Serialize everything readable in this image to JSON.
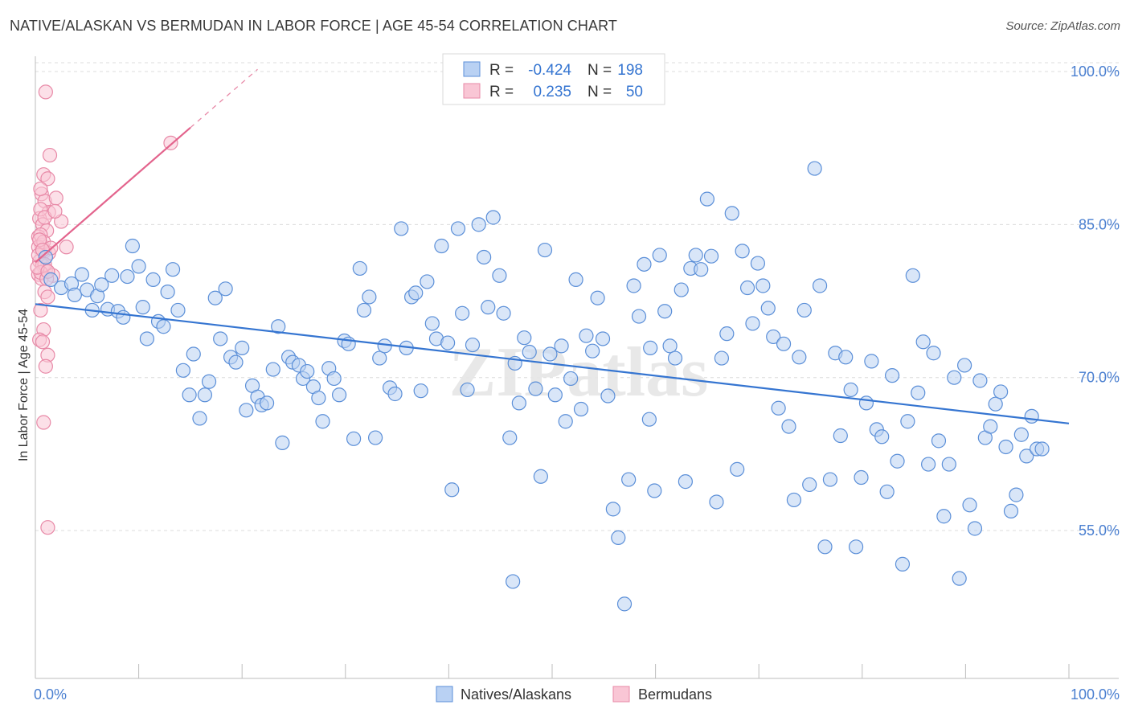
{
  "header": {
    "title": "NATIVE/ALASKAN VS BERMUDAN IN LABOR FORCE | AGE 45-54 CORRELATION CHART",
    "source": "Source: ZipAtlas.com"
  },
  "watermark": "ZIPatlas",
  "colors": {
    "blue_fill": "#b9d1f3",
    "blue_stroke": "#5b8fd8",
    "blue_line": "#3575d1",
    "pink_fill": "#f9c6d5",
    "pink_stroke": "#e889a7",
    "pink_line": "#e3648d",
    "tick_label": "#4a7fd0",
    "grid": "#dcdcdc"
  },
  "legend_top": {
    "rows": [
      {
        "r_label": "R =",
        "r_value": "-0.424",
        "n_label": "N =",
        "n_value": "198",
        "color": "blue"
      },
      {
        "r_label": "R =",
        "r_value": "0.235",
        "n_label": "N =",
        "n_value": "50",
        "color": "pink"
      }
    ]
  },
  "chart_data": {
    "type": "scatter",
    "title": "NATIVE/ALASKAN VS BERMUDAN IN LABOR FORCE | AGE 45-54 CORRELATION CHART",
    "xlabel": "",
    "ylabel": "In Labor Force | Age 45-54",
    "xlim": [
      0,
      100
    ],
    "ylim": [
      40.5,
      101.5
    ],
    "x_tick_labels": [
      "0.0%",
      "100.0%"
    ],
    "y_ticks": [
      100,
      85,
      70,
      55
    ],
    "y_tick_labels": [
      "100.0%",
      "85.0%",
      "70.0%",
      "55.0%"
    ],
    "grid": true,
    "legend": "bottom-center",
    "series": [
      {
        "name": "Natives/Alaskans",
        "color": "blue",
        "trend": {
          "x0": 0,
          "y0": 77.2,
          "x1": 100,
          "y1": 65.5
        },
        "points": [
          [
            1.0,
            81.8
          ],
          [
            1.5,
            79.6
          ],
          [
            2.5,
            78.8
          ],
          [
            3.5,
            79.2
          ],
          [
            3.8,
            78.1
          ],
          [
            4.5,
            80.1
          ],
          [
            5.0,
            78.6
          ],
          [
            5.5,
            76.6
          ],
          [
            6.0,
            78.0
          ],
          [
            6.4,
            79.1
          ],
          [
            7.0,
            76.7
          ],
          [
            7.4,
            80.0
          ],
          [
            8.0,
            76.5
          ],
          [
            8.5,
            75.9
          ],
          [
            8.9,
            79.9
          ],
          [
            9.4,
            82.9
          ],
          [
            10.0,
            80.9
          ],
          [
            10.4,
            76.9
          ],
          [
            10.8,
            73.8
          ],
          [
            11.4,
            79.6
          ],
          [
            11.9,
            75.5
          ],
          [
            12.4,
            75.0
          ],
          [
            12.8,
            78.4
          ],
          [
            13.3,
            80.6
          ],
          [
            13.8,
            76.6
          ],
          [
            14.3,
            70.7
          ],
          [
            14.9,
            68.3
          ],
          [
            15.3,
            72.3
          ],
          [
            15.9,
            66.0
          ],
          [
            16.4,
            68.3
          ],
          [
            16.8,
            69.6
          ],
          [
            17.4,
            77.8
          ],
          [
            17.9,
            73.8
          ],
          [
            18.4,
            78.7
          ],
          [
            18.9,
            72.0
          ],
          [
            19.4,
            71.5
          ],
          [
            20.0,
            72.9
          ],
          [
            20.4,
            66.8
          ],
          [
            21.0,
            69.2
          ],
          [
            21.5,
            68.1
          ],
          [
            21.9,
            67.3
          ],
          [
            22.4,
            67.5
          ],
          [
            23.0,
            70.8
          ],
          [
            23.5,
            75.0
          ],
          [
            23.9,
            63.6
          ],
          [
            24.5,
            72.0
          ],
          [
            24.9,
            71.5
          ],
          [
            25.5,
            71.2
          ],
          [
            25.9,
            69.9
          ],
          [
            26.3,
            70.6
          ],
          [
            26.9,
            69.1
          ],
          [
            27.4,
            68.0
          ],
          [
            27.8,
            65.7
          ],
          [
            28.4,
            70.9
          ],
          [
            28.9,
            69.9
          ],
          [
            29.4,
            68.3
          ],
          [
            29.9,
            73.6
          ],
          [
            30.3,
            73.3
          ],
          [
            30.8,
            64.0
          ],
          [
            31.4,
            80.7
          ],
          [
            31.8,
            76.6
          ],
          [
            32.3,
            77.9
          ],
          [
            32.9,
            64.1
          ],
          [
            33.3,
            71.9
          ],
          [
            33.8,
            73.1
          ],
          [
            34.3,
            69.0
          ],
          [
            34.8,
            68.4
          ],
          [
            35.4,
            84.6
          ],
          [
            35.9,
            72.9
          ],
          [
            36.4,
            77.9
          ],
          [
            36.8,
            78.3
          ],
          [
            37.3,
            68.7
          ],
          [
            37.9,
            79.4
          ],
          [
            38.4,
            75.3
          ],
          [
            38.8,
            73.8
          ],
          [
            39.3,
            82.9
          ],
          [
            39.9,
            73.4
          ],
          [
            40.3,
            59.0
          ],
          [
            40.9,
            84.6
          ],
          [
            41.3,
            76.3
          ],
          [
            41.8,
            68.8
          ],
          [
            42.3,
            73.2
          ],
          [
            42.9,
            85.0
          ],
          [
            43.4,
            81.8
          ],
          [
            43.8,
            76.9
          ],
          [
            44.3,
            85.7
          ],
          [
            44.9,
            80.0
          ],
          [
            45.3,
            76.3
          ],
          [
            45.9,
            64.1
          ],
          [
            46.4,
            71.4
          ],
          [
            46.8,
            67.5
          ],
          [
            47.3,
            73.9
          ],
          [
            47.8,
            72.5
          ],
          [
            48.4,
            68.9
          ],
          [
            48.9,
            60.3
          ],
          [
            49.3,
            82.5
          ],
          [
            49.8,
            72.3
          ],
          [
            50.3,
            68.3
          ],
          [
            50.9,
            73.1
          ],
          [
            51.3,
            65.7
          ],
          [
            51.8,
            69.9
          ],
          [
            52.3,
            79.6
          ],
          [
            52.8,
            66.9
          ],
          [
            53.3,
            74.1
          ],
          [
            53.9,
            72.6
          ],
          [
            54.4,
            77.8
          ],
          [
            54.9,
            73.8
          ],
          [
            55.4,
            68.2
          ],
          [
            55.9,
            57.1
          ],
          [
            56.4,
            54.3
          ],
          [
            57.4,
            60.0
          ],
          [
            57.9,
            79.0
          ],
          [
            58.4,
            76.0
          ],
          [
            58.9,
            81.1
          ],
          [
            59.4,
            65.9
          ],
          [
            59.9,
            58.9
          ],
          [
            60.4,
            82.0
          ],
          [
            60.9,
            76.5
          ],
          [
            61.4,
            73.1
          ],
          [
            61.9,
            71.9
          ],
          [
            62.5,
            78.6
          ],
          [
            62.9,
            59.8
          ],
          [
            63.4,
            80.7
          ],
          [
            63.9,
            82.0
          ],
          [
            64.4,
            80.6
          ],
          [
            65.0,
            87.5
          ],
          [
            65.4,
            81.9
          ],
          [
            65.9,
            57.8
          ],
          [
            66.4,
            71.9
          ],
          [
            66.9,
            74.3
          ],
          [
            67.4,
            86.1
          ],
          [
            67.9,
            61.0
          ],
          [
            68.4,
            82.4
          ],
          [
            68.9,
            78.8
          ],
          [
            69.4,
            75.3
          ],
          [
            69.9,
            81.2
          ],
          [
            70.4,
            79.0
          ],
          [
            70.9,
            76.8
          ],
          [
            71.4,
            74.0
          ],
          [
            71.9,
            67.0
          ],
          [
            72.4,
            73.3
          ],
          [
            72.9,
            65.2
          ],
          [
            73.4,
            58.0
          ],
          [
            73.9,
            72.0
          ],
          [
            74.4,
            76.6
          ],
          [
            74.9,
            59.5
          ],
          [
            75.4,
            90.5
          ],
          [
            75.9,
            79.0
          ],
          [
            76.4,
            53.4
          ],
          [
            76.9,
            60.0
          ],
          [
            77.4,
            72.4
          ],
          [
            77.9,
            64.3
          ],
          [
            78.4,
            72.0
          ],
          [
            78.9,
            68.8
          ],
          [
            79.4,
            53.4
          ],
          [
            79.9,
            60.2
          ],
          [
            80.4,
            67.5
          ],
          [
            80.9,
            71.6
          ],
          [
            81.4,
            64.9
          ],
          [
            81.9,
            64.2
          ],
          [
            82.4,
            58.8
          ],
          [
            82.9,
            70.2
          ],
          [
            83.4,
            61.8
          ],
          [
            83.9,
            51.7
          ],
          [
            84.4,
            65.7
          ],
          [
            84.9,
            80.0
          ],
          [
            85.4,
            68.5
          ],
          [
            85.9,
            73.5
          ],
          [
            86.4,
            61.5
          ],
          [
            86.9,
            72.4
          ],
          [
            87.4,
            63.8
          ],
          [
            87.9,
            56.4
          ],
          [
            88.4,
            61.5
          ],
          [
            88.9,
            70.0
          ],
          [
            89.4,
            50.3
          ],
          [
            89.9,
            71.2
          ],
          [
            90.4,
            57.5
          ],
          [
            90.9,
            55.2
          ],
          [
            91.4,
            69.7
          ],
          [
            91.9,
            64.1
          ],
          [
            92.4,
            65.2
          ],
          [
            92.9,
            67.4
          ],
          [
            93.4,
            68.6
          ],
          [
            93.9,
            63.2
          ],
          [
            94.4,
            56.9
          ],
          [
            94.9,
            58.5
          ],
          [
            95.4,
            64.4
          ],
          [
            95.9,
            62.3
          ],
          [
            96.4,
            66.2
          ],
          [
            96.9,
            63.0
          ],
          [
            97.4,
            63.0
          ],
          [
            46.2,
            50.0
          ],
          [
            57.0,
            47.8
          ],
          [
            59.5,
            72.9
          ]
        ]
      },
      {
        "name": "Bermudans",
        "color": "pink",
        "trend": {
          "x0": 0,
          "y0": 81.3,
          "x1": 15,
          "y1": 94.5
        },
        "points": [
          [
            1.0,
            98.0
          ],
          [
            1.4,
            91.8
          ],
          [
            0.8,
            89.9
          ],
          [
            1.2,
            89.5
          ],
          [
            0.6,
            88.0
          ],
          [
            0.9,
            87.3
          ],
          [
            1.3,
            86.2
          ],
          [
            0.4,
            85.6
          ],
          [
            0.7,
            85.0
          ],
          [
            1.1,
            84.4
          ],
          [
            0.3,
            83.8
          ],
          [
            0.6,
            83.0
          ],
          [
            0.9,
            82.4
          ],
          [
            1.3,
            82.2
          ],
          [
            0.4,
            81.4
          ],
          [
            0.7,
            81.0
          ],
          [
            1.0,
            80.6
          ],
          [
            0.3,
            80.1
          ],
          [
            0.6,
            79.7
          ],
          [
            0.9,
            78.4
          ],
          [
            1.2,
            77.9
          ],
          [
            0.5,
            76.6
          ],
          [
            0.8,
            74.7
          ],
          [
            0.4,
            73.7
          ],
          [
            0.7,
            73.5
          ],
          [
            1.2,
            72.2
          ],
          [
            1.0,
            71.1
          ],
          [
            2.0,
            87.6
          ],
          [
            2.5,
            85.3
          ],
          [
            3.0,
            82.8
          ],
          [
            1.7,
            80.0
          ],
          [
            0.8,
            65.6
          ],
          [
            1.2,
            55.3
          ],
          [
            13.1,
            93.0
          ],
          [
            0.5,
            88.5
          ],
          [
            0.5,
            86.5
          ],
          [
            0.9,
            85.7
          ],
          [
            0.5,
            84.0
          ],
          [
            0.3,
            82.8
          ],
          [
            0.8,
            83.3
          ],
          [
            0.3,
            82.0
          ],
          [
            0.9,
            81.1
          ],
          [
            0.5,
            80.3
          ],
          [
            0.2,
            80.8
          ],
          [
            1.1,
            79.7
          ],
          [
            1.9,
            86.3
          ],
          [
            1.5,
            82.7
          ],
          [
            0.4,
            83.5
          ],
          [
            0.7,
            82.5
          ],
          [
            1.2,
            80.4
          ]
        ]
      }
    ]
  },
  "legend_bottom": {
    "items": [
      {
        "label": "Natives/Alaskans",
        "color": "blue"
      },
      {
        "label": "Bermudans",
        "color": "pink"
      }
    ]
  }
}
